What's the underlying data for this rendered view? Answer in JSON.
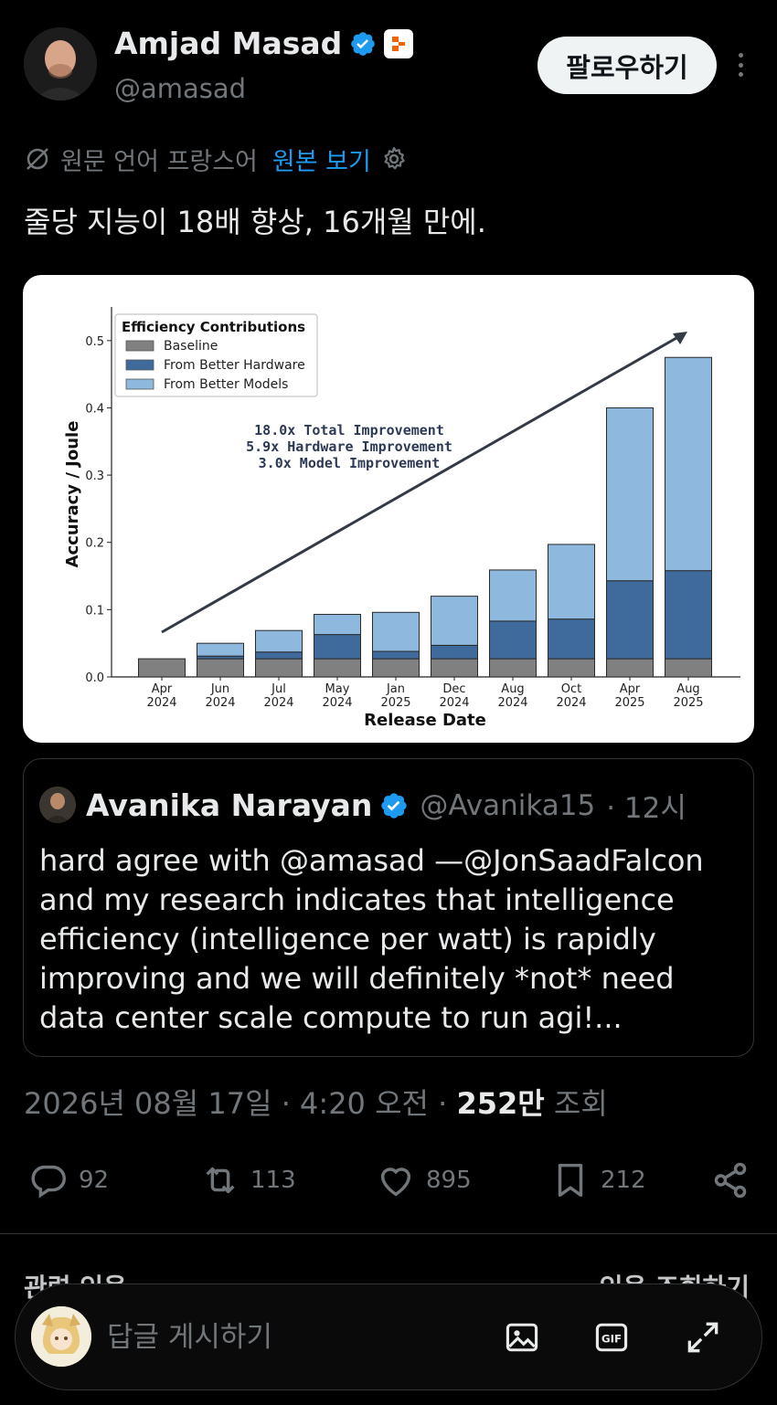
{
  "author": {
    "name": "Amjad Masad",
    "handle": "@amasad",
    "follow_label": "팔로우하기"
  },
  "translation": {
    "source_label": "원문 언어 프랑스어",
    "view_original": "원본 보기"
  },
  "tweet": {
    "text": "줄당 지능이 18배 향상, 16개월 만에."
  },
  "chart_data": {
    "type": "bar",
    "stacked": true,
    "title": "",
    "xlabel": "Release Date",
    "ylabel": "Accuracy / Joule",
    "ylim": [
      0,
      0.55
    ],
    "yticks": [
      "0.0",
      "0.1",
      "0.2",
      "0.3",
      "0.4",
      "0.5"
    ],
    "categories": [
      [
        "Apr",
        "2024"
      ],
      [
        "Jun",
        "2024"
      ],
      [
        "Jul",
        "2024"
      ],
      [
        "May",
        "2024"
      ],
      [
        "Jan",
        "2025"
      ],
      [
        "Dec",
        "2024"
      ],
      [
        "Aug",
        "2024"
      ],
      [
        "Oct",
        "2024"
      ],
      [
        "Apr",
        "2025"
      ],
      [
        "Aug",
        "2025"
      ]
    ],
    "legend_title": "Efficiency Contributions",
    "legend_position": "top-left",
    "series": [
      {
        "name": "Baseline",
        "color": "#808080",
        "values": [
          0.027,
          0.027,
          0.027,
          0.027,
          0.027,
          0.027,
          0.027,
          0.027,
          0.027,
          0.027
        ]
      },
      {
        "name": "From Better Hardware",
        "color": "#3f6a9c",
        "values": [
          0,
          0.004,
          0.01,
          0.036,
          0.011,
          0.02,
          0.056,
          0.059,
          0.116,
          0.131
        ]
      },
      {
        "name": "From Better Models",
        "color": "#8fb8de",
        "values": [
          0,
          0.019,
          0.032,
          0.03,
          0.058,
          0.073,
          0.076,
          0.111,
          0.257,
          0.317
        ]
      }
    ],
    "annotations": [
      "18.0x Total Improvement",
      "5.9x Hardware Improvement",
      "3.0x Model Improvement"
    ]
  },
  "quote": {
    "name": "Avanika Narayan",
    "handle": "@Avanika15",
    "time": "· 12시",
    "text": "hard agree with @amasad —@JonSaadFalcon and my research indicates that intelligence efficiency (intelligence per watt) is rapidly improving and we will definitely *not* need data center scale compute to run agi!..."
  },
  "meta": {
    "datetime": "2026년 08월 17일 · 4:20 오전 ·",
    "views_count": "252만",
    "views_label": "조회"
  },
  "actions": {
    "replies": "92",
    "retweets": "113",
    "likes": "895",
    "bookmarks": "212"
  },
  "related": {
    "left": "관련 인용",
    "right": "인용 조회하기"
  },
  "reply": {
    "placeholder": "답글 게시하기"
  },
  "colors": {
    "accent": "#1d9bf0",
    "muted": "#71767b",
    "text": "#e7e9ea"
  }
}
